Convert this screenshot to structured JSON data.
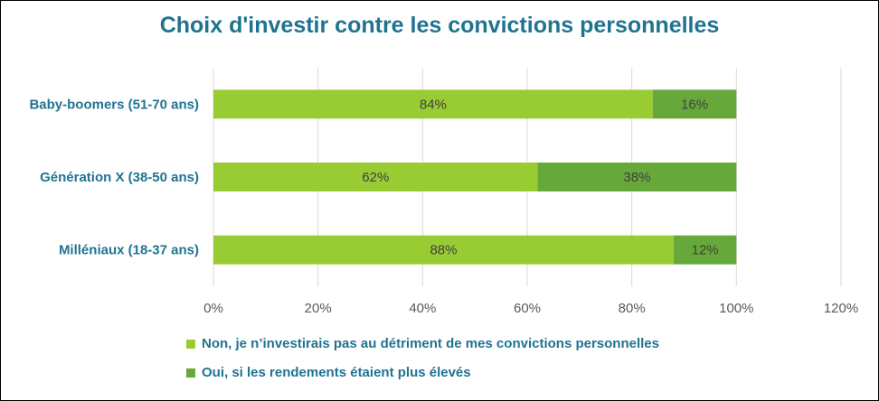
{
  "chart_data": {
    "type": "bar",
    "orientation": "horizontal",
    "stacked": true,
    "title": "Choix d'investir contre les convictions personnelles",
    "categories": [
      "Baby-boomers (51-70 ans)",
      "Génération X (38-50 ans)",
      "Milléniaux (18-37 ans)"
    ],
    "series": [
      {
        "name": "Non, je n’investirais pas au détriment de mes convictions personnelles",
        "values": [
          84,
          62,
          88
        ],
        "labels": [
          "84%",
          "62%",
          "88%"
        ],
        "color": "#99cc33"
      },
      {
        "name": "Oui, si les rendements étaient plus élevés",
        "values": [
          16,
          38,
          12
        ],
        "labels": [
          "16%",
          "38%",
          "12%"
        ],
        "color": "#66a83a"
      }
    ],
    "xlim": [
      0,
      120
    ],
    "xticks": [
      0,
      20,
      40,
      60,
      80,
      100,
      120
    ],
    "xtick_labels": [
      "0%",
      "20%",
      "40%",
      "60%",
      "80%",
      "100%",
      "120%"
    ],
    "grid": true,
    "legend_position": "bottom"
  },
  "colors": {
    "title": "#1f7391",
    "gridline": "#d9d9d9",
    "tick_text": "#595959",
    "data_label": "#404040"
  }
}
